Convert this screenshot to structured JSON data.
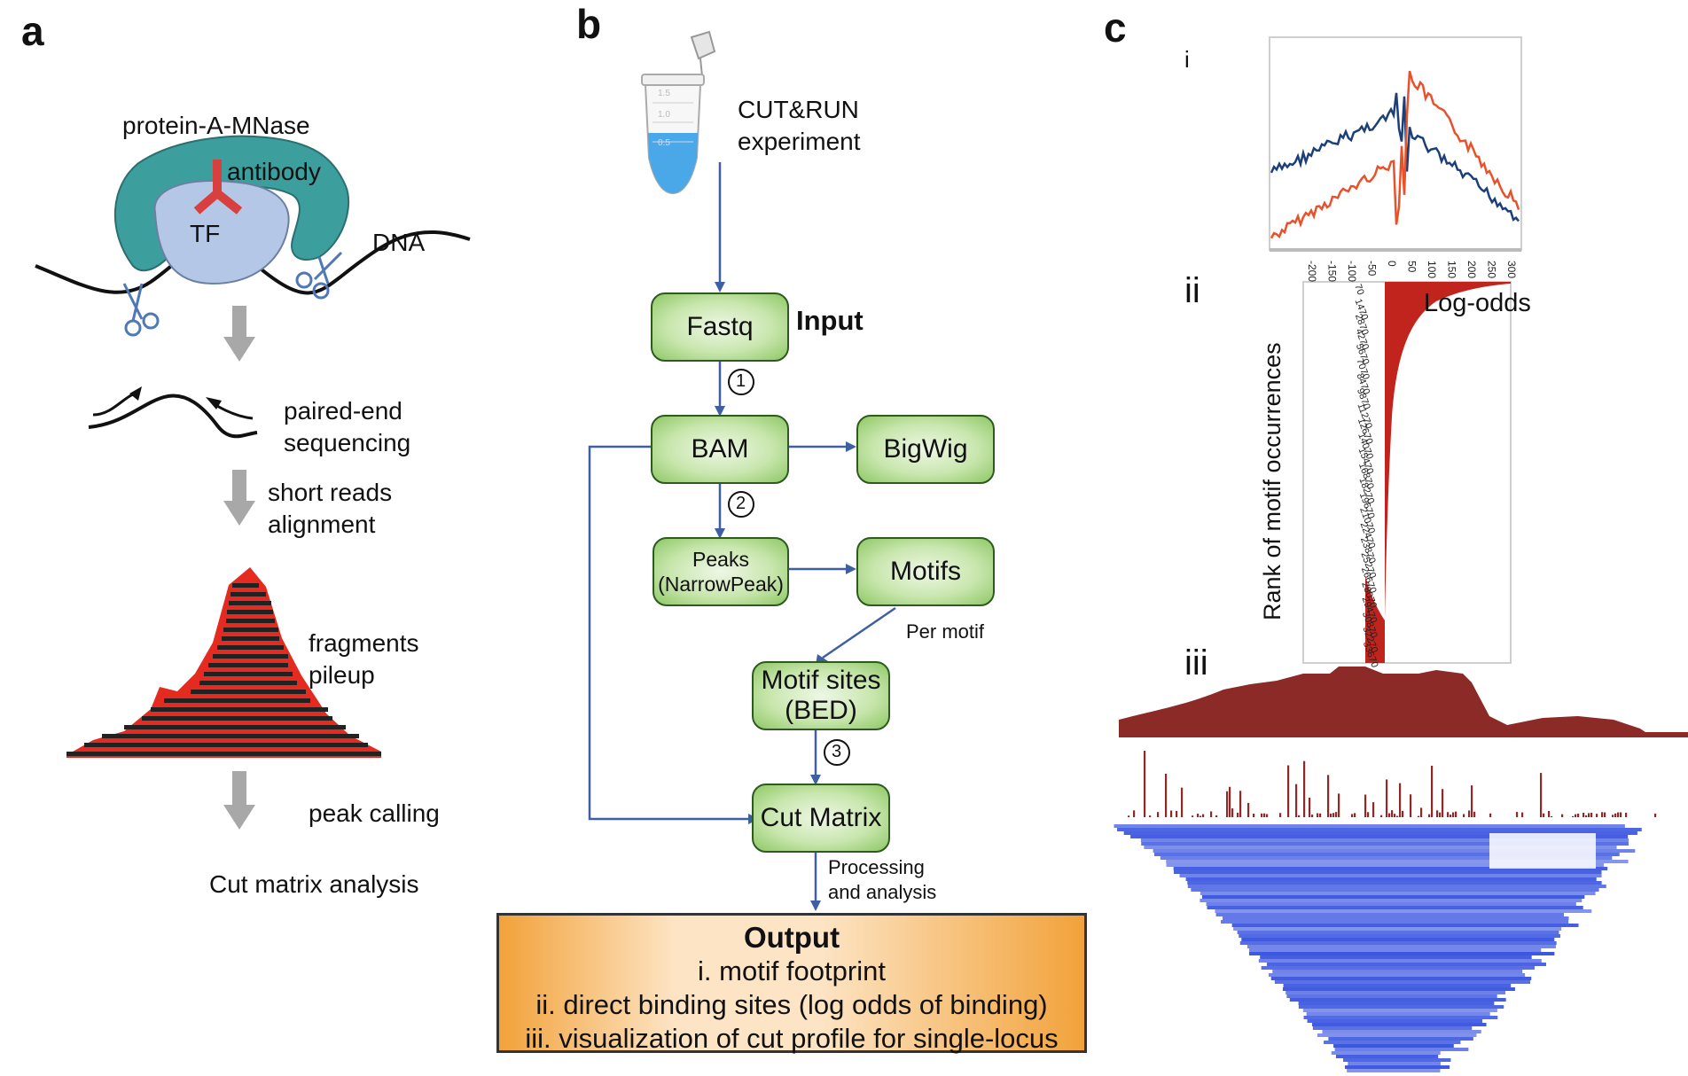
{
  "panels": {
    "a": "a",
    "b": "b",
    "c": "c"
  },
  "panel_a": {
    "protein_label": "protein-A-MNase",
    "antibody_label": "antibody",
    "tf_label": "TF",
    "dna_label": "DNA",
    "step1": [
      "paired-end",
      "sequencing"
    ],
    "step2": [
      "short reads",
      "alignment"
    ],
    "step3": [
      "fragments",
      "pileup"
    ],
    "step4": "peak calling",
    "final": "Cut matrix analysis"
  },
  "panel_b": {
    "experiment": [
      "CUT&RUN",
      "experiment"
    ],
    "tube_marks": [
      "1.5",
      "1.0",
      "0.5"
    ],
    "boxes": {
      "fastq": "Fastq",
      "bam": "BAM",
      "bigwig": "BigWig",
      "peaks": [
        "Peaks",
        "(NarrowPeak)"
      ],
      "motifs": "Motifs",
      "motif_sites": [
        "Motif sites",
        "(BED)"
      ],
      "cut_matrix": "Cut Matrix"
    },
    "input_label": "Input",
    "steps": [
      "1",
      "2",
      "3"
    ],
    "per_motif": "Per motif",
    "processing": [
      "Processing",
      "and analysis"
    ],
    "output": {
      "title": "Output",
      "lines": [
        "i. motif footprint",
        "ii. direct binding sites (log odds of binding)",
        "iii. visualization of cut profile for single-locus"
      ]
    }
  },
  "panel_c": {
    "sub_labels": [
      "i",
      "ii",
      "iii"
    ],
    "x_ticks": [
      "-200",
      "-150",
      "-100",
      "-50",
      "0",
      "50",
      "100",
      "150",
      "200",
      "250",
      "300"
    ],
    "y_rank_ticks": [
      "70",
      "1470",
      "2870",
      "4270",
      "5670",
      "7070",
      "8470",
      "9870",
      "11270",
      "12670",
      "14070",
      "15470",
      "16870",
      "18270",
      "19670",
      "21070",
      "22470",
      "23870",
      "25270",
      "26670",
      "28070",
      "29470",
      "30870",
      "32270",
      "33670"
    ],
    "log_odds_label": "Log-odds",
    "rank_label": "Rank of motif occurrences",
    "colors": {
      "series_blue": "#1c3f7a",
      "series_orange": "#e8512a",
      "logodds_fill": "#c0241c",
      "track_red": "#8b2a26",
      "reads_blue": "#3a55e0"
    }
  }
}
